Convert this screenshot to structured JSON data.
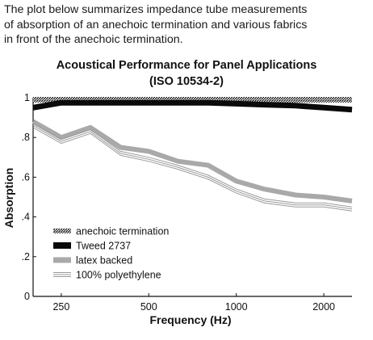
{
  "intro_lines": [
    "The plot below summarizes impedance tube measurements",
    "of absorption of an anechoic termination and various fabrics",
    "in front of the anechoic termination."
  ],
  "chart_data": {
    "type": "line",
    "title": "Acoustical Performance for Panel Applications",
    "subtitle": "(ISO 10534-2)",
    "xlabel": "Frequency (Hz)",
    "ylabel": "Absorption",
    "x": [
      200,
      250,
      315,
      400,
      500,
      630,
      800,
      1000,
      1250,
      1600,
      2000,
      2500
    ],
    "xlim": [
      200,
      2500
    ],
    "xscale": "log",
    "ylim": [
      0,
      1
    ],
    "xticks": [
      250,
      500,
      1000,
      2000
    ],
    "xtick_labels": [
      "250",
      "500",
      "1000",
      "2000"
    ],
    "yticks": [
      0,
      0.2,
      0.4,
      0.6,
      0.8,
      1
    ],
    "ytick_labels": [
      "0",
      ".2",
      ".4",
      ".6",
      ".8",
      "1"
    ],
    "grid": false,
    "legend_position": "bottom-left",
    "series": [
      {
        "name": "anechoic termination",
        "style": "hatched",
        "values": [
          0.99,
          0.99,
          0.99,
          0.99,
          0.99,
          0.99,
          0.99,
          0.99,
          0.99,
          0.99,
          0.99,
          0.99
        ]
      },
      {
        "name": "Tweed 2737",
        "style": "thick-black",
        "values": [
          0.95,
          0.975,
          0.975,
          0.975,
          0.975,
          0.975,
          0.975,
          0.97,
          0.965,
          0.96,
          0.95,
          0.94
        ]
      },
      {
        "name": "latex backed",
        "style": "thick-gray",
        "values": [
          0.88,
          0.8,
          0.85,
          0.75,
          0.73,
          0.68,
          0.66,
          0.58,
          0.54,
          0.51,
          0.5,
          0.48
        ]
      },
      {
        "name": "100% polyethylene",
        "style": "triple-line",
        "values": [
          0.86,
          0.78,
          0.83,
          0.72,
          0.69,
          0.65,
          0.6,
          0.53,
          0.48,
          0.46,
          0.46,
          0.44
        ]
      }
    ]
  }
}
